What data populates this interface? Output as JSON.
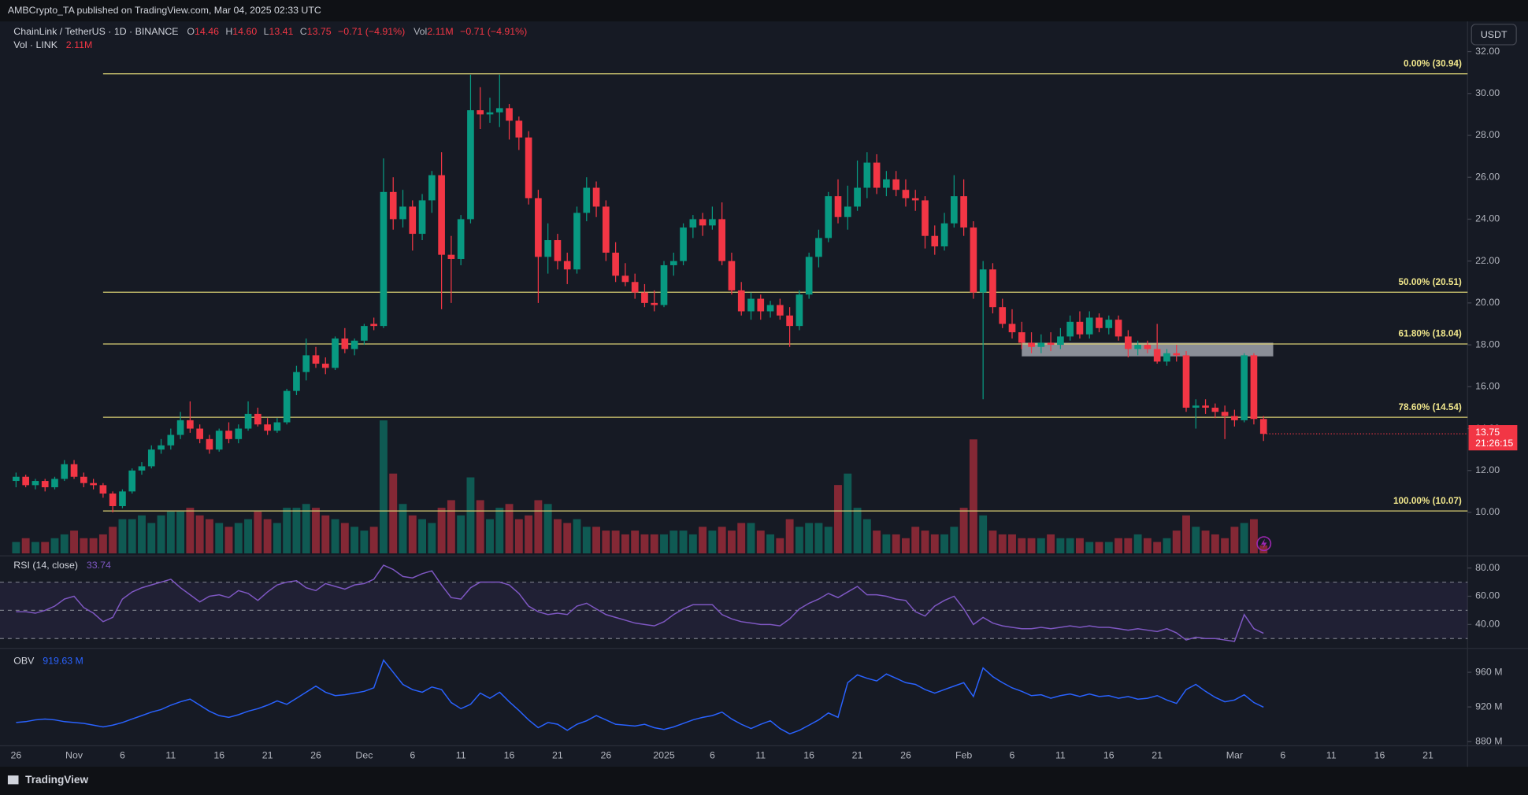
{
  "header": {
    "published": "AMBCrypto_TA published on TradingView.com, Mar 04, 2025 02:33 UTC"
  },
  "chart_data": {
    "type": "candlestick",
    "legend": {
      "symbol": "ChainLink / TetherUS · 1D · BINANCE",
      "fields": [
        {
          "key": "O",
          "value": "14.46"
        },
        {
          "key": "H",
          "value": "14.60"
        },
        {
          "key": "L",
          "value": "13.41"
        },
        {
          "key": "C",
          "value": "13.75"
        }
      ],
      "change": "−0.71 (−4.91%)",
      "vol_key": "Vol",
      "vol_value": "2.11M",
      "vol_change": "−0.71 (−4.91%)"
    },
    "volume_legend": {
      "name": "Vol · LINK",
      "value": "2.11M"
    },
    "currency": "USDT",
    "xlim": [
      -1.66,
      150.1
    ],
    "xticks": [
      {
        "value": 0,
        "label": "26"
      },
      {
        "value": 6,
        "label": "Nov"
      },
      {
        "value": 11,
        "label": "6"
      },
      {
        "value": 16,
        "label": "11"
      },
      {
        "value": 21,
        "label": "16"
      },
      {
        "value": 26,
        "label": "21"
      },
      {
        "value": 31,
        "label": "26"
      },
      {
        "value": 36,
        "label": "Dec"
      },
      {
        "value": 41,
        "label": "6"
      },
      {
        "value": 46,
        "label": "11"
      },
      {
        "value": 51,
        "label": "16"
      },
      {
        "value": 56,
        "label": "21"
      },
      {
        "value": 61,
        "label": "26"
      },
      {
        "value": 67,
        "label": "2025"
      },
      {
        "value": 72,
        "label": "6"
      },
      {
        "value": 77,
        "label": "11"
      },
      {
        "value": 82,
        "label": "16"
      },
      {
        "value": 87,
        "label": "21"
      },
      {
        "value": 92,
        "label": "26"
      },
      {
        "value": 98,
        "label": "Feb"
      },
      {
        "value": 103,
        "label": "6"
      },
      {
        "value": 108,
        "label": "11"
      },
      {
        "value": 113,
        "label": "16"
      },
      {
        "value": 118,
        "label": "21"
      },
      {
        "value": 126,
        "label": "Mar"
      },
      {
        "value": 131,
        "label": "6"
      },
      {
        "value": 136,
        "label": "11"
      },
      {
        "value": 141,
        "label": "16"
      },
      {
        "value": 146,
        "label": "21"
      }
    ],
    "ylim": [
      7.95,
      33.44
    ],
    "yticks": [
      {
        "value": 10,
        "label": "10.00"
      },
      {
        "value": 12,
        "label": "12.00"
      },
      {
        "value": 14,
        "label": "14.00"
      },
      {
        "value": 16,
        "label": "16.00"
      },
      {
        "value": 18,
        "label": "18.00"
      },
      {
        "value": 20,
        "label": "20.00"
      },
      {
        "value": 22,
        "label": "22.00"
      },
      {
        "value": 24,
        "label": "24.00"
      },
      {
        "value": 26,
        "label": "26.00"
      },
      {
        "value": 28,
        "label": "28.00"
      },
      {
        "value": 30,
        "label": "30.00"
      },
      {
        "value": 32,
        "label": "32.00"
      }
    ],
    "grid": false,
    "up_color": "#089981",
    "down_color": "#f23645",
    "open": [
      11.5,
      11.7,
      11.3,
      11.5,
      11.2,
      11.6,
      12.3,
      11.7,
      11.4,
      11.3,
      10.9,
      10.3,
      11.0,
      12.0,
      12.2,
      13.0,
      13.2,
      13.7,
      14.4,
      14.0,
      13.5,
      13.0,
      13.9,
      13.5,
      14.0,
      14.7,
      14.2,
      13.9,
      14.3,
      15.8,
      16.7,
      17.5,
      17.1,
      16.9,
      18.3,
      17.8,
      18.2,
      19.0,
      18.9,
      25.3,
      24.0,
      24.6,
      23.3,
      24.9,
      26.1,
      22.3,
      22.1,
      24.0,
      29.2,
      29.0,
      29.1,
      29.3,
      28.7,
      27.9,
      25.0,
      22.2,
      23.0,
      22.0,
      21.6,
      24.3,
      25.5,
      24.6,
      22.4,
      21.3,
      21.0,
      20.5,
      20.0,
      19.9,
      21.8,
      22.0,
      23.6,
      24.0,
      23.7,
      24.0,
      22.0,
      20.6,
      19.6,
      20.2,
      19.6,
      19.9,
      19.4,
      18.9,
      20.4,
      22.2,
      23.1,
      25.1,
      24.1,
      24.6,
      25.5,
      26.7,
      25.5,
      25.9,
      25.4,
      25.0,
      24.9,
      23.2,
      22.7,
      23.8,
      25.1,
      23.6,
      20.5,
      21.6,
      19.8,
      19.0,
      18.6,
      18.1,
      17.9,
      18.1,
      18.0,
      18.4,
      19.1,
      18.5,
      19.3,
      18.8,
      19.2,
      18.4,
      17.8,
      18.0,
      17.8,
      17.2,
      17.6,
      17.5,
      15.0,
      15.1,
      15.0,
      14.8,
      14.6,
      14.4,
      17.5,
      14.46
    ],
    "high": [
      11.9,
      11.8,
      11.6,
      11.6,
      11.7,
      12.5,
      12.5,
      11.9,
      11.6,
      11.4,
      11.0,
      11.1,
      12.1,
      12.4,
      13.2,
      13.5,
      14.0,
      14.8,
      15.3,
      14.2,
      13.7,
      14.0,
      14.3,
      14.2,
      15.3,
      15.0,
      14.5,
      14.5,
      15.9,
      17.0,
      18.3,
      17.9,
      17.4,
      18.4,
      18.8,
      18.3,
      19.0,
      19.3,
      26.9,
      26.0,
      25.4,
      24.9,
      25.2,
      26.3,
      27.2,
      23.2,
      24.2,
      30.9,
      30.3,
      29.8,
      30.9,
      29.5,
      28.9,
      28.2,
      25.4,
      23.8,
      23.3,
      22.4,
      24.6,
      26.0,
      25.8,
      24.9,
      22.9,
      21.9,
      21.4,
      20.9,
      20.6,
      22.0,
      22.4,
      23.8,
      24.2,
      24.3,
      24.6,
      24.8,
      22.4,
      21.0,
      20.5,
      20.4,
      20.1,
      20.2,
      19.8,
      20.6,
      22.4,
      23.5,
      25.3,
      25.9,
      25.6,
      26.8,
      27.2,
      27.1,
      26.3,
      26.3,
      25.9,
      25.4,
      25.1,
      23.7,
      24.3,
      26.1,
      25.9,
      23.9,
      22.0,
      21.9,
      20.2,
      19.7,
      19.1,
      18.6,
      18.5,
      18.6,
      18.8,
      19.4,
      19.6,
      19.6,
      19.5,
      19.4,
      19.4,
      18.7,
      18.2,
      18.2,
      19.0,
      17.8,
      18.0,
      17.7,
      15.4,
      15.4,
      15.2,
      15.1,
      14.9,
      17.6,
      17.6,
      14.6
    ],
    "low": [
      11.2,
      11.2,
      11.1,
      11.0,
      11.1,
      11.5,
      11.6,
      11.2,
      11.1,
      10.7,
      10.0,
      10.2,
      10.9,
      11.8,
      12.1,
      12.8,
      13.0,
      13.5,
      13.8,
      13.3,
      12.8,
      12.9,
      13.3,
      13.3,
      13.9,
      14.1,
      13.7,
      13.8,
      14.2,
      15.6,
      16.3,
      16.9,
      16.6,
      16.8,
      17.6,
      17.5,
      18.0,
      18.7,
      18.8,
      23.5,
      23.6,
      22.5,
      23.0,
      24.3,
      19.7,
      20.0,
      21.8,
      23.8,
      28.3,
      28.6,
      28.4,
      27.8,
      27.3,
      24.7,
      20.0,
      21.4,
      21.6,
      20.9,
      21.4,
      23.9,
      24.1,
      22.0,
      21.0,
      20.8,
      20.2,
      19.8,
      19.6,
      19.8,
      21.3,
      21.8,
      23.1,
      23.2,
      23.5,
      21.8,
      20.4,
      19.4,
      19.2,
      19.2,
      19.3,
      19.2,
      17.9,
      18.7,
      20.2,
      21.7,
      22.9,
      23.8,
      23.5,
      24.4,
      25.0,
      25.2,
      25.1,
      25.1,
      24.6,
      24.4,
      22.6,
      22.3,
      22.5,
      23.6,
      23.2,
      20.2,
      15.4,
      19.5,
      18.8,
      18.3,
      17.8,
      17.6,
      17.6,
      17.7,
      17.8,
      18.2,
      18.3,
      18.3,
      18.6,
      18.5,
      18.2,
      17.4,
      17.5,
      17.6,
      17.1,
      17.0,
      17.2,
      14.8,
      14.0,
      14.7,
      14.5,
      13.5,
      14.1,
      14.3,
      14.2,
      13.41
    ],
    "close": [
      11.7,
      11.3,
      11.5,
      11.2,
      11.6,
      12.3,
      11.7,
      11.4,
      11.3,
      10.9,
      10.3,
      11.0,
      12.0,
      12.2,
      13.0,
      13.2,
      13.7,
      14.4,
      14.0,
      13.5,
      13.0,
      13.9,
      13.5,
      14.0,
      14.7,
      14.2,
      13.9,
      14.3,
      15.8,
      16.7,
      17.5,
      17.1,
      16.9,
      18.3,
      17.8,
      18.2,
      18.9,
      18.9,
      25.3,
      24.0,
      24.6,
      23.3,
      24.9,
      26.1,
      22.3,
      22.1,
      24.0,
      29.2,
      29.0,
      29.1,
      29.3,
      28.7,
      27.9,
      25.0,
      22.2,
      23.0,
      22.0,
      21.6,
      24.3,
      25.5,
      24.6,
      22.4,
      21.3,
      21.0,
      20.5,
      20.0,
      19.9,
      21.8,
      22.0,
      23.6,
      24.0,
      23.7,
      24.0,
      22.0,
      20.6,
      19.6,
      20.2,
      19.6,
      19.9,
      19.4,
      18.9,
      20.4,
      22.2,
      23.1,
      25.1,
      24.1,
      24.6,
      25.5,
      26.7,
      25.5,
      25.9,
      25.4,
      25.0,
      24.9,
      23.2,
      22.7,
      23.8,
      25.1,
      23.6,
      20.5,
      21.6,
      19.8,
      19.0,
      18.6,
      18.1,
      17.9,
      18.1,
      18.0,
      18.4,
      19.1,
      18.5,
      19.3,
      18.8,
      19.2,
      18.4,
      17.8,
      18.0,
      17.8,
      17.2,
      17.6,
      17.5,
      15.0,
      15.1,
      15.0,
      14.8,
      14.6,
      14.4,
      17.5,
      14.46,
      13.75
    ],
    "volume": {
      "ylim": [
        0,
        140
      ],
      "values": [
        3,
        4,
        3,
        3,
        4,
        5,
        6,
        4,
        4,
        5,
        7,
        9,
        9,
        10,
        8,
        10,
        11,
        11,
        12,
        10,
        9,
        8,
        7,
        8,
        9,
        11,
        9,
        8,
        12,
        12,
        13,
        12,
        10,
        9,
        8,
        7,
        6,
        7,
        35,
        21,
        13,
        10,
        9,
        8,
        12,
        14,
        10,
        20,
        14,
        9,
        12,
        13,
        9,
        10,
        14,
        13,
        9,
        8,
        9,
        7,
        7,
        6,
        6,
        5,
        6,
        5,
        5,
        5,
        6,
        6,
        5,
        7,
        6,
        7,
        6,
        8,
        8,
        6,
        5,
        4,
        9,
        7,
        8,
        8,
        7,
        18,
        21,
        12,
        9,
        6,
        5,
        5,
        4,
        7,
        6,
        5,
        5,
        7,
        12,
        30,
        10,
        6,
        5,
        5,
        4,
        4,
        4,
        5,
        4,
        4,
        4,
        3,
        3,
        3,
        4,
        4,
        5,
        4,
        3,
        4,
        6,
        10,
        7,
        6,
        5,
        4,
        7,
        8,
        9,
        2.11
      ]
    },
    "fib_levels": {
      "x_start": 9,
      "color": "#d9cf73",
      "levels": [
        {
          "label": "0.00% (30.94)",
          "value": 30.94
        },
        {
          "label": "50.00% (20.51)",
          "value": 20.51
        },
        {
          "label": "61.80% (18.04)",
          "value": 18.04
        },
        {
          "label": "78.60% (14.54)",
          "value": 14.54
        },
        {
          "label": "100.00% (10.07)",
          "value": 10.07
        }
      ]
    },
    "zone": {
      "x": [
        104,
        130
      ],
      "y": [
        17.45,
        18.1
      ],
      "color": "#b2b5be"
    },
    "last_price": {
      "label": "13.75",
      "countdown": "21:26:15"
    }
  },
  "rsi": {
    "type": "line",
    "name": "RSI (14, close)",
    "value_label": "33.74",
    "color": "#7e57c2",
    "levels": [
      70,
      50,
      30
    ],
    "ylim": [
      23.4,
      88.3
    ],
    "yticks": [
      {
        "value": 80,
        "label": "80.00"
      },
      {
        "value": 60,
        "label": "60.00"
      },
      {
        "value": 40,
        "label": "40.00"
      }
    ],
    "values": [
      49,
      49,
      48,
      50,
      53,
      58,
      60,
      52,
      48,
      42,
      45,
      58,
      63,
      66,
      68,
      70,
      72,
      66,
      61,
      56,
      60,
      61,
      59,
      64,
      62,
      57,
      63,
      68,
      70,
      71,
      66,
      64,
      69,
      67,
      65,
      68,
      69,
      72,
      82,
      79,
      74,
      73,
      76,
      78,
      68,
      59,
      58,
      66,
      70,
      70,
      70,
      68,
      62,
      53,
      49,
      47,
      48,
      47,
      53,
      55,
      51,
      47,
      45,
      43,
      41,
      40,
      39,
      42,
      47,
      51,
      54,
      54,
      54,
      47,
      44,
      42,
      41,
      40,
      40,
      39,
      44,
      51,
      55,
      58,
      62,
      59,
      63,
      67,
      61,
      61,
      60,
      58,
      57,
      49,
      46,
      53,
      57,
      60,
      51,
      40,
      45,
      41,
      39,
      38,
      37,
      37,
      38,
      37,
      38,
      39,
      38,
      39,
      38,
      38,
      37,
      36,
      37,
      36,
      35,
      37,
      34,
      29,
      31,
      30,
      30,
      29,
      28,
      47,
      37,
      33.74
    ]
  },
  "obv": {
    "type": "line",
    "name": "OBV",
    "value_label": "919.63 M",
    "color": "#2962ff",
    "ylim": [
      875.7,
      987
    ],
    "yticks": [
      {
        "value": 960,
        "label": "960 M"
      },
      {
        "value": 920,
        "label": "920 M"
      },
      {
        "value": 880,
        "label": "880 M"
      }
    ],
    "values": [
      902,
      903,
      905,
      906,
      905,
      903,
      902,
      901,
      899,
      897,
      899,
      902,
      906,
      910,
      914,
      917,
      922,
      926,
      929,
      922,
      915,
      910,
      908,
      911,
      915,
      918,
      922,
      927,
      923,
      930,
      937,
      944,
      937,
      933,
      934,
      936,
      938,
      942,
      974,
      960,
      946,
      940,
      937,
      943,
      940,
      925,
      918,
      923,
      936,
      930,
      937,
      926,
      916,
      905,
      896,
      902,
      900,
      893,
      900,
      904,
      910,
      905,
      900,
      899,
      898,
      900,
      896,
      894,
      897,
      901,
      905,
      908,
      910,
      914,
      906,
      900,
      895,
      900,
      904,
      895,
      889,
      893,
      899,
      905,
      913,
      908,
      948,
      957,
      953,
      950,
      958,
      953,
      948,
      946,
      940,
      936,
      940,
      944,
      948,
      932,
      965,
      955,
      948,
      942,
      938,
      933,
      934,
      930,
      933,
      935,
      932,
      935,
      932,
      933,
      930,
      932,
      929,
      930,
      933,
      928,
      924,
      940,
      946,
      938,
      931,
      926,
      928,
      934,
      925,
      919.63
    ]
  },
  "footer": {
    "brand": "TradingView"
  }
}
